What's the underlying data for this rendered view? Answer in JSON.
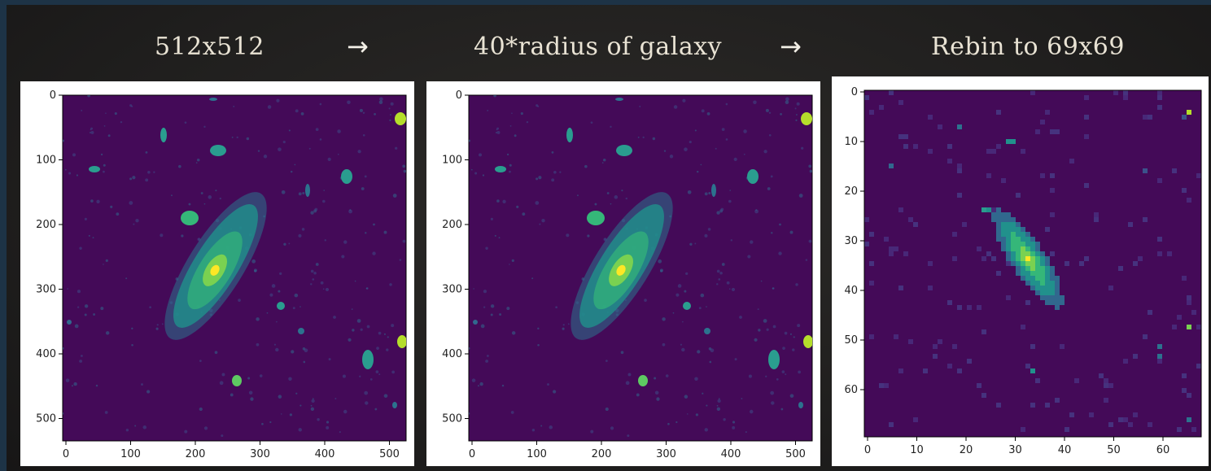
{
  "captions": {
    "step1": "512x512",
    "step2": "40*radius of galaxy",
    "step3": "Rebin to 69x69"
  },
  "arrows": [
    "→",
    "→"
  ],
  "colors": {
    "background": "#1d3346",
    "caption_text": "#e9e3d4",
    "image_background": "#440a58",
    "galaxy_mid": "#21918c",
    "galaxy_bright": "#fde725"
  },
  "panels": [
    {
      "name": "original-image",
      "xticks": [
        "0",
        "100",
        "200",
        "300",
        "400",
        "500"
      ],
      "yticks": [
        "0",
        "100",
        "200",
        "300",
        "400",
        "500"
      ],
      "colormap": "viridis"
    },
    {
      "name": "cropped-image",
      "xticks": [
        "0",
        "100",
        "200",
        "300",
        "400",
        "500"
      ],
      "yticks": [
        "0",
        "100",
        "200",
        "300",
        "400",
        "500"
      ],
      "colormap": "viridis"
    },
    {
      "name": "rebinned-image",
      "xticks": [
        "0",
        "10",
        "20",
        "30",
        "40",
        "50",
        "60"
      ],
      "yticks": [
        "0",
        "10",
        "20",
        "30",
        "40",
        "50",
        "60"
      ],
      "colormap": "viridis"
    }
  ]
}
